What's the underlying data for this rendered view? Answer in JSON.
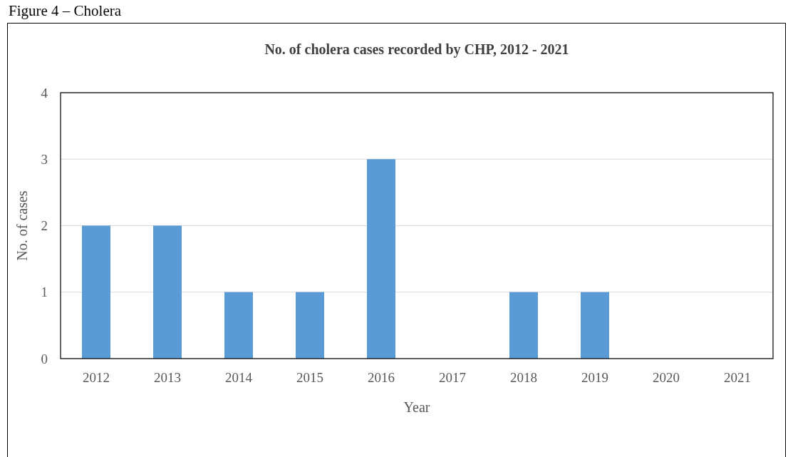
{
  "chart_data": {
    "type": "bar",
    "title": "No. of cholera cases recorded by CHP,  2012 - 2021",
    "xlabel": "Year",
    "ylabel": "No. of cases",
    "annotations": [
      "Figure 4 – Cholera"
    ],
    "categories": [
      "2012",
      "2013",
      "2014",
      "2015",
      "2016",
      "2017",
      "2018",
      "2019",
      "2020",
      "2021"
    ],
    "values": [
      2,
      2,
      1,
      1,
      3,
      0,
      1,
      1,
      0,
      0
    ],
    "color": "#5b9bd5",
    "ylim": [
      0,
      4
    ],
    "yticks": [
      0,
      1,
      2,
      3,
      4
    ],
    "grid": "y"
  }
}
